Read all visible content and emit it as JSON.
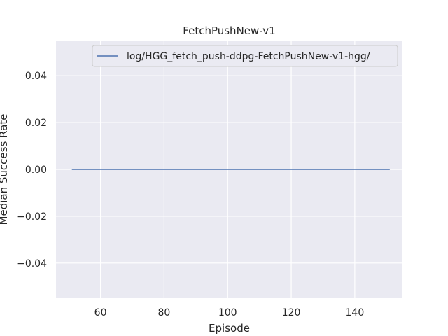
{
  "chart_data": {
    "type": "line",
    "title": "FetchPushNew-v1",
    "xlabel": "Episode",
    "ylabel": "Median Success Rate",
    "xlim": [
      46,
      155
    ],
    "ylim": [
      -0.055,
      0.055
    ],
    "xticks": [
      60,
      80,
      100,
      120,
      140
    ],
    "xtick_labels": [
      "60",
      "80",
      "100",
      "120",
      "140"
    ],
    "yticks": [
      -0.04,
      -0.02,
      0.0,
      0.02,
      0.04
    ],
    "ytick_labels": [
      "−0.04",
      "−0.02",
      "0.00",
      "0.02",
      "0.04"
    ],
    "grid": true,
    "legend_position": "top-right",
    "series": [
      {
        "name": "log/HGG_fetch_push-ddpg-FetchPushNew-v1-hgg/",
        "color": "#4c72b0",
        "x": [
          51,
          151
        ],
        "y": [
          0.0,
          0.0
        ]
      }
    ]
  }
}
